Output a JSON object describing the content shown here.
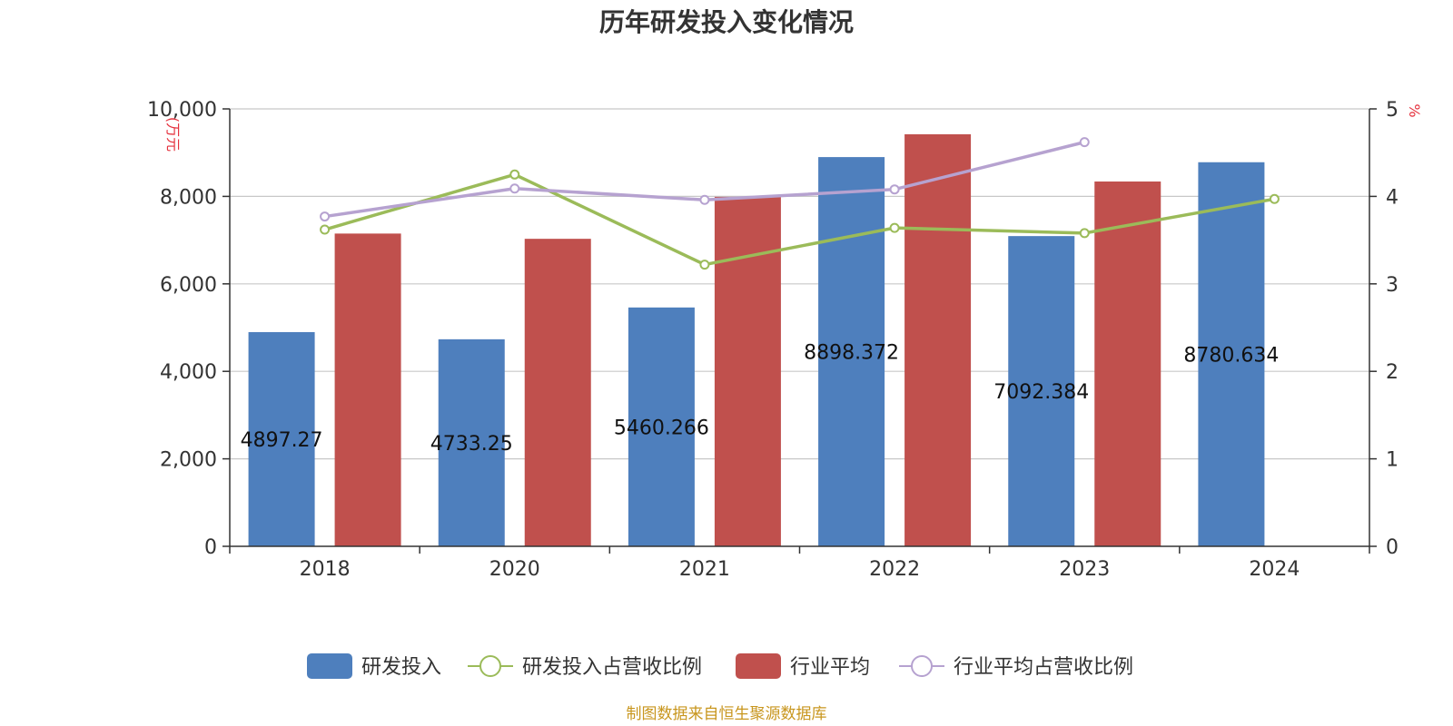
{
  "chart_data": {
    "type": "bar",
    "title": "历年研发投入变化情况",
    "categories": [
      "2018",
      "2020",
      "2021",
      "2022",
      "2023",
      "2024"
    ],
    "y_left": {
      "unit": "(万元",
      "ylim": [
        0,
        10000
      ],
      "ticks": [
        "0",
        "2,000",
        "4,000",
        "6,000",
        "8,000",
        "10,000"
      ]
    },
    "y_right": {
      "unit": "%",
      "ylim": [
        0,
        5
      ],
      "ticks": [
        "0",
        "1",
        "2",
        "3",
        "4",
        "5"
      ]
    },
    "grid": true,
    "legend_position": "bottom",
    "series": [
      {
        "name": "研发投入",
        "kind": "bar",
        "color": "#4e7fbd",
        "values": [
          4897.27,
          4733.25,
          5460.266,
          8898.372,
          7092.384,
          8780.634
        ],
        "labels": [
          "4897.27",
          "4733.25",
          "5460.266",
          "8898.372",
          "7092.384",
          "8780.634"
        ]
      },
      {
        "name": "研发投入占营收比例",
        "kind": "line",
        "axis": "right",
        "color": "#9bbb59",
        "values": [
          3.62,
          4.25,
          3.22,
          3.64,
          3.58,
          3.97
        ]
      },
      {
        "name": "行业平均",
        "kind": "bar",
        "color": "#c0504d",
        "values": [
          7150,
          7030,
          7990,
          9420,
          8340,
          null
        ]
      },
      {
        "name": "行业平均占营收比例",
        "kind": "line",
        "axis": "right",
        "color": "#b6a2d0",
        "values": [
          3.77,
          4.09,
          3.96,
          4.08,
          4.62,
          null
        ]
      }
    ],
    "source": "制图数据来自恒生聚源数据库"
  }
}
